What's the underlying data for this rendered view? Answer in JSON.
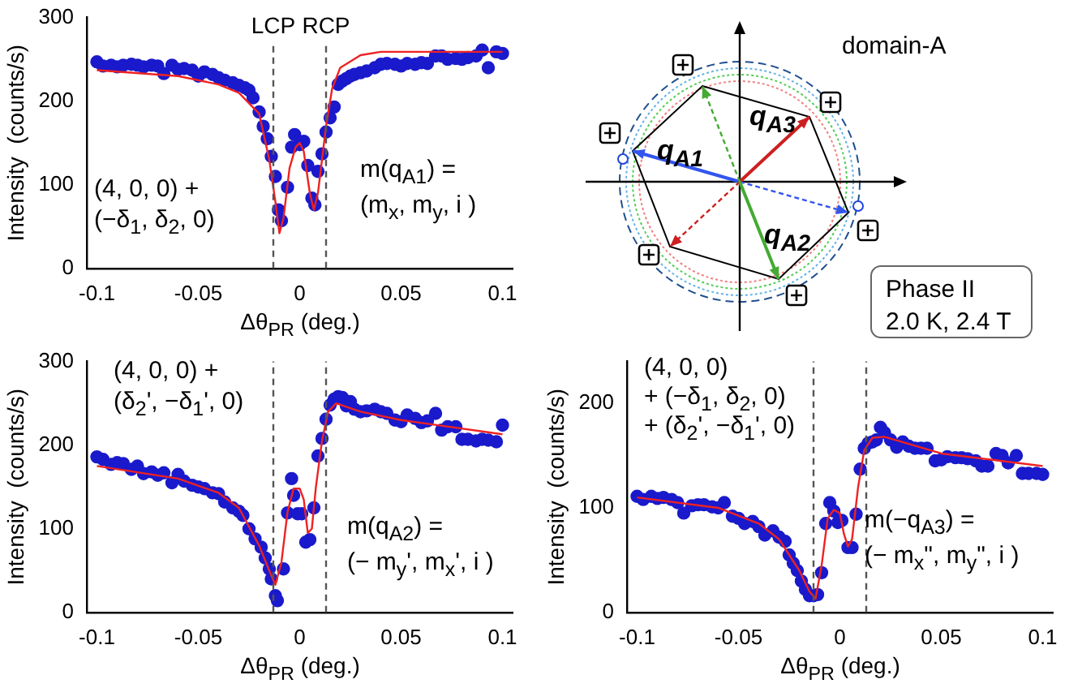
{
  "chart_data": [
    {
      "type": "scatter",
      "xlabel": "Δθ$_{PR}$  (deg.)",
      "ylabel": "Intensity  (counts/s)",
      "xlim": [
        -0.105,
        0.105
      ],
      "xticks": [
        -0.1,
        -0.05,
        0,
        0.05,
        0.1
      ],
      "ylim": [
        0,
        300
      ],
      "yticks": [
        0,
        100,
        200,
        300
      ],
      "legend": false,
      "grid": false,
      "ref_lines": [
        {
          "axis": "x",
          "value": -0.013,
          "label": "LCP",
          "color": "#555555",
          "line_style": "dashed"
        },
        {
          "axis": "x",
          "value": 0.013,
          "label": "RCP",
          "color": "#555555",
          "line_style": "dashed"
        }
      ],
      "annotations": [
        "(4, 0, 0) +",
        "(−δ$_{1}$, δ$_{2}$, 0)",
        "m(q$_{A1}$) =",
        "(m$_{x}$, m$_{y}$, i )"
      ],
      "series": [
        {
          "type": "scatter",
          "color": "#1a1acc",
          "marker": "circle",
          "x": [
            -0.1,
            -0.097,
            -0.093,
            -0.09,
            -0.087,
            -0.083,
            -0.08,
            -0.077,
            -0.073,
            -0.07,
            -0.067,
            -0.063,
            -0.06,
            -0.057,
            -0.053,
            -0.05,
            -0.047,
            -0.043,
            -0.04,
            -0.037,
            -0.033,
            -0.03,
            -0.027,
            -0.025,
            -0.023,
            -0.02,
            -0.018,
            -0.016,
            -0.014,
            -0.012,
            -0.0105,
            -0.009,
            -0.006,
            -0.004,
            -0.0025,
            0,
            0.002,
            0.004,
            0.006,
            0.0075,
            0.009,
            0.011,
            0.013,
            0.015,
            0.017,
            0.019,
            0.021,
            0.023,
            0.025,
            0.027,
            0.03,
            0.033,
            0.037,
            0.04,
            0.043,
            0.047,
            0.05,
            0.053,
            0.057,
            0.06,
            0.063,
            0.067,
            0.07,
            0.073,
            0.077,
            0.08,
            0.083,
            0.087,
            0.09,
            0.093,
            0.097,
            0.1
          ],
          "values": [
            247,
            242,
            243,
            241,
            243,
            244,
            243,
            241,
            243,
            242,
            233,
            243,
            238,
            239,
            237,
            230,
            235,
            232,
            228,
            225,
            222,
            219,
            216,
            213,
            204,
            187,
            170,
            155,
            134,
            110,
            70,
            57,
            97,
            145,
            160,
            148,
            152,
            123,
            84,
            76,
            116,
            137,
            163,
            180,
            193,
            220,
            224,
            227,
            230,
            232,
            234,
            236,
            240,
            244,
            245,
            244,
            242,
            245,
            244,
            246,
            245,
            254,
            254,
            250,
            251,
            250,
            252,
            254,
            261,
            240,
            259,
            257
          ]
        },
        {
          "type": "line",
          "color": "#ee2222",
          "marker": "none",
          "line_style": "solid",
          "x": [
            -0.1,
            -0.06,
            -0.04,
            -0.03,
            -0.02,
            -0.015,
            -0.012,
            -0.01,
            -0.008,
            -0.005,
            -0.002,
            0,
            0.002,
            0.005,
            0.007,
            0.009,
            0.011,
            0.013,
            0.016,
            0.02,
            0.03,
            0.04,
            0.1
          ],
          "values": [
            237,
            230,
            220,
            210,
            185,
            130,
            80,
            42,
            60,
            120,
            145,
            150,
            140,
            90,
            70,
            90,
            130,
            170,
            215,
            240,
            255,
            259,
            259
          ]
        }
      ]
    },
    {
      "type": "scatter",
      "xlabel": "Δθ$_{PR}$  (deg.)",
      "ylabel": "Intensity  (counts/s)",
      "xlim": [
        -0.105,
        0.105
      ],
      "xticks": [
        -0.1,
        -0.05,
        0,
        0.05,
        0.1
      ],
      "ylim": [
        0,
        300
      ],
      "yticks": [
        0,
        100,
        200,
        300
      ],
      "legend": false,
      "grid": false,
      "ref_lines": [
        {
          "axis": "x",
          "value": -0.013,
          "color": "#555555",
          "line_style": "dashed"
        },
        {
          "axis": "x",
          "value": 0.013,
          "color": "#555555",
          "line_style": "dashed"
        }
      ],
      "annotations": [
        "(4, 0, 0) +",
        "(δ$_{2}$', −δ$_{1}$', 0)",
        "m(q$_{A2}$) =",
        "(− m$_{y}$', m$_{x}$', i )"
      ],
      "series": [
        {
          "type": "scatter",
          "color": "#1a1acc",
          "marker": "circle",
          "x": [
            -0.1,
            -0.097,
            -0.093,
            -0.09,
            -0.087,
            -0.083,
            -0.08,
            -0.077,
            -0.073,
            -0.07,
            -0.067,
            -0.063,
            -0.06,
            -0.057,
            -0.053,
            -0.05,
            -0.047,
            -0.043,
            -0.04,
            -0.037,
            -0.033,
            -0.03,
            -0.028,
            -0.025,
            -0.022,
            -0.019,
            -0.017,
            -0.015,
            -0.014,
            -0.012,
            -0.011,
            -0.008,
            -0.006,
            -0.004,
            -0.003,
            -0.001,
            0.001,
            0.003,
            0.005,
            0.007,
            0.009,
            0.011,
            0.013,
            0.015,
            0.017,
            0.019,
            0.021,
            0.023,
            0.025,
            0.027,
            0.03,
            0.033,
            0.037,
            0.04,
            0.043,
            0.047,
            0.05,
            0.053,
            0.057,
            0.06,
            0.063,
            0.067,
            0.07,
            0.073,
            0.077,
            0.08,
            0.083,
            0.087,
            0.09,
            0.093,
            0.097,
            0.1
          ],
          "values": [
            186,
            183,
            177,
            179,
            178,
            171,
            175,
            166,
            168,
            164,
            167,
            155,
            165,
            157,
            152,
            150,
            148,
            143,
            142,
            132,
            125,
            121,
            116,
            100,
            88,
            78,
            65,
            52,
            40,
            20,
            14,
            52,
            119,
            160,
            140,
            118,
            118,
            84,
            87,
            125,
            187,
            208,
            231,
            248,
            255,
            258,
            257,
            247,
            252,
            243,
            240,
            241,
            243,
            240,
            238,
            230,
            228,
            236,
            232,
            227,
            229,
            238,
            218,
            222,
            222,
            207,
            207,
            205,
            207,
            206,
            204,
            224
          ]
        },
        {
          "type": "line",
          "color": "#ee2222",
          "marker": "none",
          "line_style": "solid",
          "x": [
            -0.1,
            -0.06,
            -0.04,
            -0.03,
            -0.02,
            -0.015,
            -0.012,
            -0.009,
            -0.006,
            -0.003,
            0,
            0.002,
            0.004,
            0.006,
            0.008,
            0.011,
            0.014,
            0.018,
            0.03,
            0.05,
            0.1
          ],
          "values": [
            175,
            160,
            143,
            125,
            80,
            50,
            33,
            60,
            120,
            148,
            148,
            135,
            95,
            100,
            150,
            205,
            240,
            250,
            240,
            230,
            213
          ]
        }
      ]
    },
    {
      "type": "scatter",
      "xlabel": "Δθ$_{PR}$  (deg.)",
      "ylabel": "Intensity  (counts/s)",
      "xlim": [
        -0.105,
        0.105
      ],
      "xticks": [
        -0.1,
        -0.05,
        0,
        0.05,
        0.1
      ],
      "ylim": [
        0,
        240
      ],
      "yticks": [
        0,
        100,
        200
      ],
      "legend": false,
      "grid": false,
      "ref_lines": [
        {
          "axis": "x",
          "value": -0.013,
          "color": "#555555",
          "line_style": "dashed"
        },
        {
          "axis": "x",
          "value": 0.013,
          "color": "#555555",
          "line_style": "dashed"
        }
      ],
      "annotations": [
        "(4, 0, 0)",
        "+ (−δ$_{1}$, δ$_{2}$, 0)",
        "+ (δ$_{2}$', −δ$_{1}$', 0)",
        "m(−q$_{A3}$) =",
        "(− m$_{x}$\", m$_{y}$\", i )"
      ],
      "series": [
        {
          "type": "scatter",
          "color": "#1a1acc",
          "marker": "circle",
          "x": [
            -0.1,
            -0.097,
            -0.093,
            -0.09,
            -0.087,
            -0.083,
            -0.08,
            -0.077,
            -0.073,
            -0.07,
            -0.067,
            -0.063,
            -0.06,
            -0.057,
            -0.053,
            -0.05,
            -0.047,
            -0.043,
            -0.04,
            -0.037,
            -0.033,
            -0.03,
            -0.027,
            -0.025,
            -0.023,
            -0.021,
            -0.019,
            -0.017,
            -0.015,
            -0.013,
            -0.011,
            -0.009,
            -0.007,
            -0.005,
            -0.003,
            -0.001,
            0.001,
            0.004,
            0.006,
            0.008,
            0.01,
            0.012,
            0.014,
            0.016,
            0.018,
            0.02,
            0.022,
            0.025,
            0.028,
            0.031,
            0.034,
            0.037,
            0.04,
            0.043,
            0.047,
            0.05,
            0.053,
            0.057,
            0.06,
            0.063,
            0.067,
            0.07,
            0.073,
            0.077,
            0.08,
            0.083,
            0.087,
            0.09,
            0.093,
            0.097,
            0.1
          ],
          "values": [
            111,
            108,
            111,
            109,
            110,
            108,
            105,
            95,
            102,
            103,
            103,
            101,
            100,
            105,
            92,
            90,
            85,
            87,
            82,
            74,
            78,
            72,
            68,
            55,
            47,
            40,
            30,
            22,
            16,
            16,
            17,
            38,
            85,
            105,
            97,
            86,
            88,
            62,
            62,
            94,
            137,
            157,
            162,
            163,
            165,
            177,
            172,
            165,
            158,
            163,
            159,
            157,
            157,
            157,
            145,
            146,
            149,
            148,
            148,
            147,
            145,
            140,
            140,
            152,
            150,
            143,
            150,
            133,
            133,
            133,
            132
          ]
        },
        {
          "type": "line",
          "color": "#ee2222",
          "marker": "none",
          "line_style": "solid",
          "x": [
            -0.1,
            -0.06,
            -0.04,
            -0.03,
            -0.02,
            -0.015,
            -0.012,
            -0.009,
            -0.006,
            -0.003,
            0,
            0.002,
            0.004,
            0.006,
            0.009,
            0.012,
            0.016,
            0.022,
            0.05,
            0.1
          ],
          "values": [
            110,
            100,
            85,
            70,
            40,
            20,
            13,
            45,
            90,
            98,
            95,
            75,
            63,
            70,
            120,
            155,
            167,
            168,
            152,
            140
          ]
        }
      ]
    },
    {
      "type": "other",
      "annotations": [
        "domain-A",
        "q$_{A1}$",
        "q$_{A3}$",
        "q$_{A2}$",
        "Phase II",
        "2.0 K,  2.4 T"
      ]
    }
  ]
}
